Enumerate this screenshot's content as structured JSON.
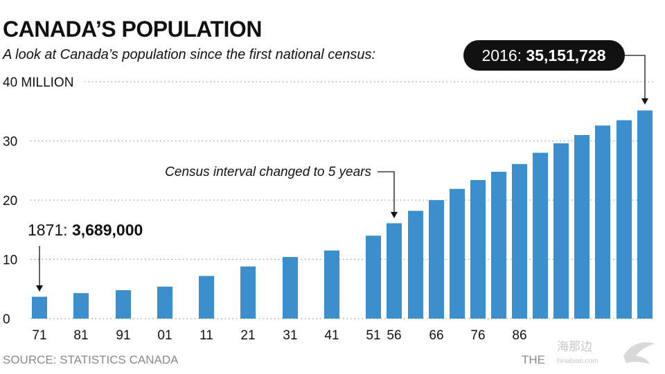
{
  "header": {
    "title": "CANADA’S POPULATION",
    "subtitle": "A look at Canada’s population since the first national census:"
  },
  "footer": {
    "source": "SOURCE: STATISTICS CANADA",
    "credit": "THE"
  },
  "watermark": {
    "text": "海那边",
    "url": "hinabian.com",
    "icon": "bird-logo-icon"
  },
  "colors": {
    "bar": "#3a8fcc",
    "grid": "#9a9a9a",
    "callout_bg": "#111111",
    "callout_text": "#ffffff"
  },
  "chart_data": {
    "type": "bar",
    "title": "CANADA’S POPULATION",
    "subtitle": "A look at Canada’s population since the first national census:",
    "ylim": [
      0,
      40
    ],
    "y_ticks": [
      0,
      10,
      20,
      30,
      40
    ],
    "y_tick_labels": [
      "0",
      "10",
      "20",
      "30",
      "40 MILLION"
    ],
    "grid": true,
    "categories": [
      "1871",
      "1881",
      "1891",
      "1901",
      "1911",
      "1921",
      "1931",
      "1941",
      "1951",
      "1956",
      "1961",
      "1966",
      "1971",
      "1976",
      "1981",
      "1986",
      "1991",
      "1996",
      "2001",
      "2006",
      "2011",
      "2016"
    ],
    "tick_labels": [
      "71",
      "81",
      "91",
      "01",
      "11",
      "21",
      "31",
      "41",
      "51",
      "56",
      "",
      "66",
      "",
      "76",
      "",
      "86",
      "",
      "",
      "",
      "",
      "",
      ""
    ],
    "values": [
      3.689,
      4.3,
      4.8,
      5.4,
      7.2,
      8.8,
      10.4,
      11.5,
      14.0,
      16.1,
      18.2,
      20.0,
      21.9,
      23.4,
      24.8,
      26.1,
      28.0,
      29.6,
      31.0,
      32.6,
      33.5,
      35.151728
    ],
    "annotations": [
      {
        "label": "1871: ",
        "value": "3,689,000",
        "category": "1871"
      },
      {
        "label": "2016: ",
        "value": "35,151,728",
        "category": "2016"
      },
      {
        "label": "Census interval changed to 5 years",
        "category": "1956"
      }
    ]
  }
}
